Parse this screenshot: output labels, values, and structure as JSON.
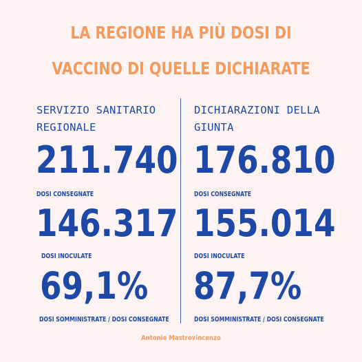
{
  "title": {
    "line1": "LA REGIONE HA PIÙ DOSI DI",
    "line2": "VACCINO DI QUELLE DICHIARATE"
  },
  "left": {
    "heading_line1": "SERVIZIO SANITARIO",
    "heading_line2": "REGIONALE",
    "delivered_value": "211.740",
    "delivered_label": "DOSI CONSEGNATE",
    "inoculated_value": "146.317",
    "inoculated_label": "DOSI INOCULATE",
    "ratio_value": "69,1%",
    "ratio_label": "DOSI SOMMINISTRATE / DOSI CONSEGNATE"
  },
  "right": {
    "heading_line1": "DICHIARAZIONI DELLA",
    "heading_line2": "GIUNTA",
    "delivered_value": "176.810",
    "delivered_label": "DOSI CONSEGNATE",
    "inoculated_value": "155.014",
    "inoculated_label": "DOSI INOCULATE",
    "ratio_value": "87,7%",
    "ratio_label": "DOSI SOMMINISTRATE / DOSI CONSEGNATE"
  },
  "author": "Antonio Mastrovincenzo",
  "colors": {
    "background": "#fcf3f2",
    "accent_orange": "#f39a5e",
    "primary_blue": "#1d48a6"
  }
}
